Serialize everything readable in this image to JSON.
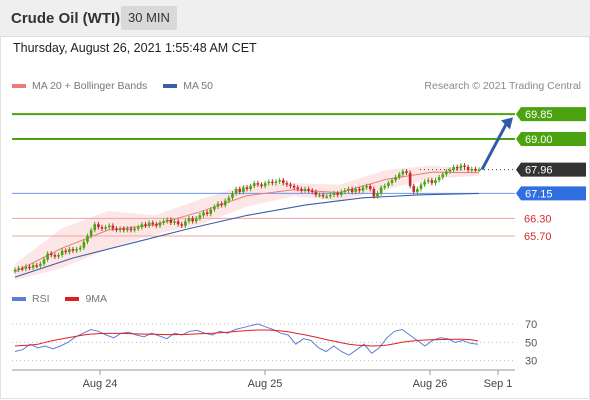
{
  "header": {
    "instrument": "Crude Oil (WTI)",
    "timeframe": "30 MIN"
  },
  "timestamp": "Thursday, August 26, 2021 1:55:48 AM CET",
  "credit": "Research © 2021 Trading Central",
  "legend_main": [
    {
      "label": "MA 20 + Bollinger Bands",
      "color": "#f07a7a"
    },
    {
      "label": "MA 50",
      "color": "#3a5fa8"
    }
  ],
  "legend_rsi": [
    {
      "label": "RSI",
      "color": "#5b7fd6"
    },
    {
      "label": "9MA",
      "color": "#e02020"
    }
  ],
  "colors": {
    "resistance": "#4aa30f",
    "pivot": "#6a97f0",
    "support": "#f2a3a3",
    "support_text": "#d42b2b",
    "last_price_bg": "#333333",
    "bull_candle": "#4aa30f",
    "bear_candle": "#c22a2a",
    "arrow": "#2f5ca8",
    "bollinger_fill": "#fde2e2"
  },
  "chart_data": {
    "type": "candlestick",
    "ylim": [
      64.2,
      70.5
    ],
    "x_ticks": [
      "Aug 24",
      "Aug 25",
      "Aug 26",
      "Sep 1"
    ],
    "levels": [
      {
        "name": "resistance-2",
        "value": 69.85,
        "label": "69.85",
        "kind": "resistance"
      },
      {
        "name": "resistance-1",
        "value": 69.0,
        "label": "69.00",
        "kind": "resistance"
      },
      {
        "name": "last-price",
        "value": 67.96,
        "label": "67.96",
        "kind": "last"
      },
      {
        "name": "pivot",
        "value": 67.15,
        "label": "67.15",
        "kind": "pivot"
      },
      {
        "name": "support-1",
        "value": 66.3,
        "label": "66.30",
        "kind": "support"
      },
      {
        "name": "support-2",
        "value": 65.7,
        "label": "65.70",
        "kind": "support"
      }
    ],
    "close": [
      64.55,
      64.6,
      64.58,
      64.65,
      64.62,
      64.7,
      64.68,
      64.75,
      64.9,
      65.1,
      65.05,
      65.0,
      65.05,
      65.2,
      65.15,
      65.25,
      65.2,
      65.25,
      65.3,
      65.5,
      65.7,
      65.9,
      66.1,
      66.0,
      65.95,
      66.0,
      66.05,
      65.95,
      65.9,
      65.95,
      65.9,
      65.95,
      65.9,
      65.95,
      66.0,
      66.1,
      66.05,
      66.15,
      66.1,
      66.05,
      66.15,
      66.2,
      66.25,
      66.15,
      66.2,
      66.1,
      66.05,
      66.2,
      66.3,
      66.2,
      66.3,
      66.4,
      66.5,
      66.45,
      66.6,
      66.7,
      66.8,
      66.75,
      66.9,
      67.0,
      67.15,
      67.3,
      67.2,
      67.35,
      67.3,
      67.4,
      67.5,
      67.45,
      67.4,
      67.5,
      67.55,
      67.5,
      67.55,
      67.6,
      67.5,
      67.45,
      67.4,
      67.35,
      67.3,
      67.25,
      67.3,
      67.25,
      67.2,
      67.1,
      67.1,
      67.05,
      67.05,
      67.1,
      67.15,
      67.1,
      67.2,
      67.25,
      67.3,
      67.2,
      67.3,
      67.25,
      67.35,
      67.4,
      67.3,
      67.05,
      67.15,
      67.35,
      67.4,
      67.5,
      67.6,
      67.7,
      67.8,
      67.9,
      67.85,
      67.4,
      67.2,
      67.3,
      67.45,
      67.55,
      67.6,
      67.5,
      67.6,
      67.7,
      67.8,
      67.9,
      67.95,
      68.05,
      68.0,
      68.1,
      68.05,
      67.95,
      67.98,
      67.96,
      67.96
    ],
    "ma50": [
      64.3,
      64.95,
      65.45,
      65.95,
      66.4,
      66.75,
      67.0,
      67.1,
      67.15
    ],
    "bb_upper": [
      64.75,
      65.95,
      66.55,
      66.4,
      66.95,
      67.45,
      67.5,
      67.45,
      67.95,
      68.1,
      67.95
    ],
    "bb_lower": [
      64.2,
      64.6,
      65.25,
      65.75,
      66.1,
      66.7,
      67.05,
      66.9,
      67.3,
      67.65,
      67.75
    ],
    "rsi_ylim": [
      22,
      82
    ],
    "rsi_ticks": [
      70,
      50,
      30
    ],
    "rsi": [
      40,
      42,
      48,
      44,
      46,
      43,
      46,
      50,
      56,
      60,
      64,
      62,
      58,
      55,
      60,
      61,
      58,
      56,
      60,
      57,
      54,
      60,
      58,
      62,
      63,
      60,
      58,
      62,
      60,
      64,
      66,
      68,
      70,
      67,
      64,
      60,
      58,
      48,
      54,
      52,
      44,
      40,
      46,
      40,
      36,
      42,
      48,
      38,
      44,
      55,
      62,
      64,
      58,
      52,
      46,
      52,
      55,
      54,
      50,
      52,
      49,
      48
    ],
    "rsi_ma": [
      46,
      46.5,
      47,
      48,
      50,
      52,
      53.5,
      55,
      56.5,
      58,
      59,
      59.5,
      59.8,
      59.8,
      59.7,
      59.5,
      59.2,
      59,
      58.8,
      58.6,
      58.4,
      58.4,
      58.5,
      58.8,
      59.2,
      59.6,
      60,
      60.5,
      61,
      61.8,
      62.5,
      63,
      63.5,
      63.5,
      63.2,
      62.5,
      61.5,
      60,
      58.5,
      56.8,
      55,
      53,
      51.3,
      49.5,
      48,
      47,
      46.5,
      46,
      46.2,
      47,
      48.5,
      50,
      51.2,
      52,
      52.5,
      52.8,
      53,
      53.2,
      53.4,
      53.4,
      53,
      51.5
    ]
  }
}
